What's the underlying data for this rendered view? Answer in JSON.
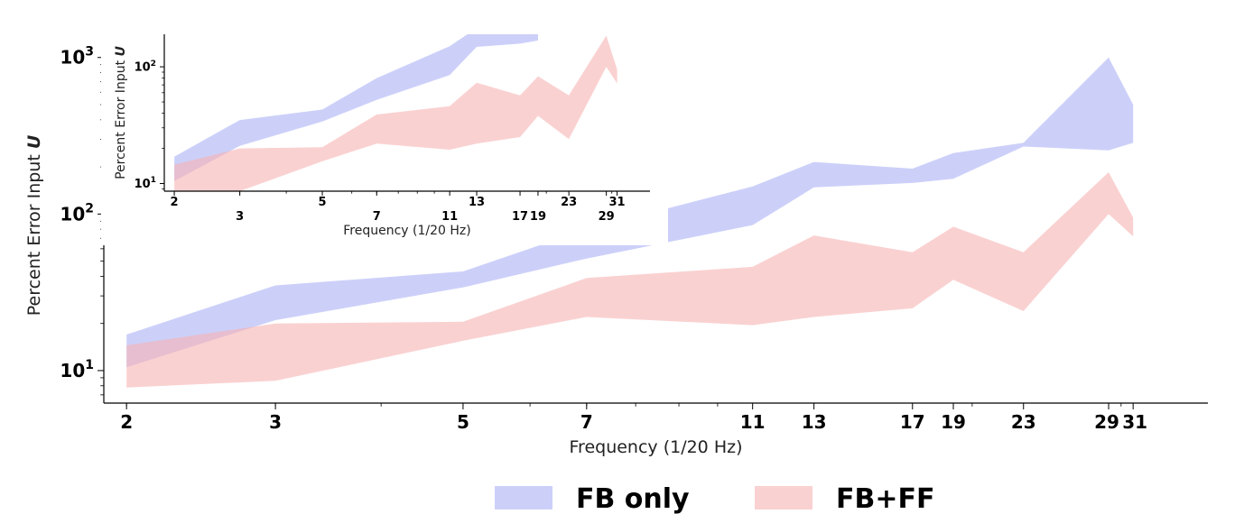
{
  "chart_data": [
    {
      "type": "area",
      "xscale": "log",
      "yscale": "log",
      "xlabel": "Frequency (1/20 Hz)",
      "ylabel_prefix": "Percent Error Input ",
      "ylabel_symbol": "U",
      "xlim": [
        1.88,
        38
      ],
      "ylim": [
        6.2,
        1200
      ],
      "xticks": [
        "2",
        "3",
        "5",
        "7",
        "11",
        "13",
        "17",
        "19",
        "23",
        "29",
        "31"
      ],
      "yticks": [
        10,
        100,
        1000
      ],
      "grid": false,
      "legend": "bottom-center",
      "series": [
        {
          "name": "FB only",
          "color": "#aab0f5",
          "x": [
            2,
            3,
            5,
            7,
            11,
            13,
            17,
            19,
            23,
            29,
            31
          ],
          "upper": [
            17,
            35,
            43,
            80,
            150,
            215,
            195,
            245,
            285,
            1000,
            500
          ],
          "lower": [
            10.5,
            21,
            34,
            52,
            85,
            148,
            158,
            168,
            270,
            255,
            285
          ]
        },
        {
          "name": "FB+FF",
          "color": "#f7b3b3",
          "x": [
            2,
            3,
            5,
            7,
            11,
            13,
            17,
            19,
            23,
            29,
            31
          ],
          "upper": [
            14.5,
            20,
            20.5,
            39,
            46,
            73,
            57,
            83,
            57,
            185,
            95
          ],
          "lower": [
            7.8,
            8.6,
            15.5,
            22,
            19.5,
            22,
            25,
            38,
            24,
            100,
            72
          ]
        }
      ]
    },
    {
      "type": "area",
      "xscale": "log",
      "yscale": "log",
      "xlabel": "Frequency (1/20 Hz)",
      "ylabel_prefix": "Percent Error Input ",
      "ylabel_symbol": "U",
      "xlim": [
        1.88,
        38
      ],
      "ylim": [
        8.6,
        190
      ],
      "xticks": [
        "2",
        "3",
        "5",
        "7",
        "11",
        "13",
        "17",
        "19",
        "23",
        "29",
        "31"
      ],
      "yticks": [
        10,
        100
      ],
      "grid": false,
      "series": [
        {
          "name": "FB only",
          "color": "#aab0f5",
          "x": [
            2,
            3,
            5,
            7,
            11,
            13,
            17,
            19
          ],
          "upper": [
            17,
            35,
            43,
            80,
            150,
            215,
            195,
            245
          ],
          "lower": [
            10.5,
            21,
            34,
            52,
            85,
            148,
            158,
            168
          ]
        },
        {
          "name": "FB+FF",
          "color": "#f7b3b3",
          "x": [
            2,
            3,
            5,
            7,
            11,
            13,
            17,
            19,
            23,
            29,
            31
          ],
          "upper": [
            14.5,
            20,
            20.5,
            39,
            46,
            73,
            57,
            83,
            57,
            185,
            95
          ],
          "lower": [
            7.8,
            8.6,
            15.5,
            22,
            19.5,
            22,
            25,
            38,
            24,
            100,
            72
          ]
        }
      ]
    }
  ]
}
